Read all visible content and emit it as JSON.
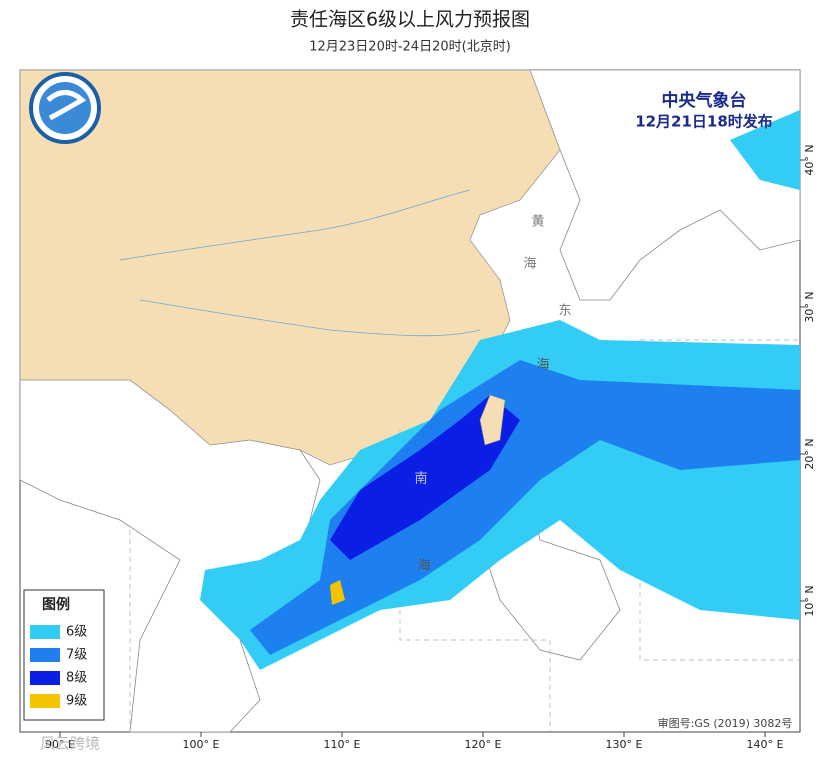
{
  "header": {
    "title": "责任海区6级以上风力预报图",
    "subtitle": "12月23日20时-24日20时(北京时)"
  },
  "issuer": {
    "name": "中央气象台",
    "time": "12月21日18时发布"
  },
  "legend": {
    "title": "图例",
    "items": [
      {
        "label": "6级",
        "color": "#33ccf5"
      },
      {
        "label": "7级",
        "color": "#1e7ff0"
      },
      {
        "label": "8级",
        "color": "#0a1ee6"
      },
      {
        "label": "9级",
        "color": "#f5c400"
      }
    ]
  },
  "longitude_labels": [
    "90° E",
    "100° E",
    "110° E",
    "120° E",
    "130° E",
    "140° E"
  ],
  "latitude_labels": [
    "40° N",
    "30° N",
    "20° N",
    "10° N"
  ],
  "sea_labels": [
    "黄",
    "海",
    "东",
    "海",
    "南",
    "海"
  ],
  "review_number": "审图号:GS (2019) 3082号",
  "watermark": "风云跨境"
}
